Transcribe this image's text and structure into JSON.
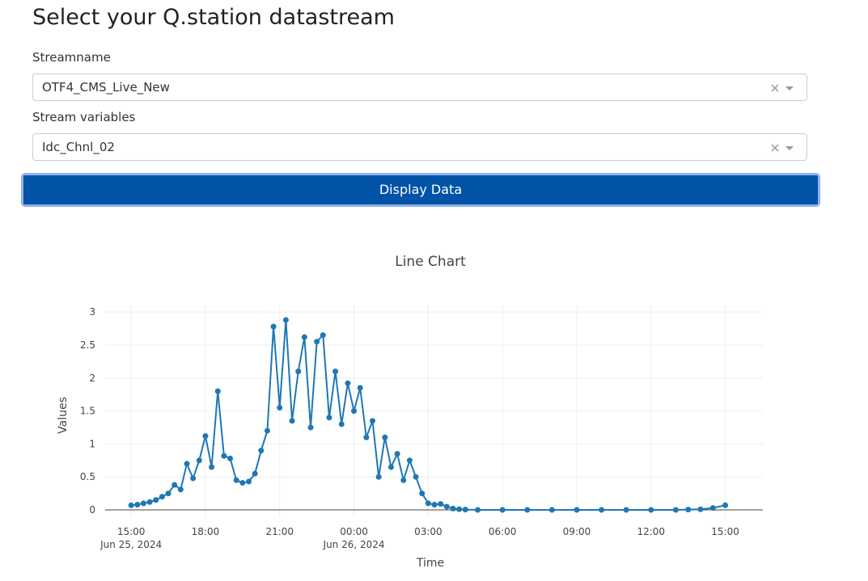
{
  "form": {
    "title": "Select your Q.station datastream",
    "fields": [
      {
        "label": "Streamname",
        "value": "OTF4_CMS_Live_New"
      },
      {
        "label": "Stream variables",
        "value": "Idc_Chnl_02"
      }
    ],
    "button": "Display Data"
  },
  "chart_data": {
    "type": "line",
    "title": "Line Chart",
    "xlabel": "Time",
    "ylabel": "Values",
    "xlim": [
      "2024-06-25 13:57",
      "2024-06-26 16:31"
    ],
    "xticks": [
      {
        "value": "2024-06-25 15:00",
        "label": [
          "15:00",
          "Jun 25, 2024"
        ]
      },
      {
        "value": "2024-06-25 18:00",
        "label": [
          "18:00"
        ]
      },
      {
        "value": "2024-06-25 21:00",
        "label": [
          "21:00"
        ]
      },
      {
        "value": "2024-06-26 00:00",
        "label": [
          "00:00",
          "Jun 26, 2024"
        ]
      },
      {
        "value": "2024-06-26 03:00",
        "label": [
          "03:00"
        ]
      },
      {
        "value": "2024-06-26 06:00",
        "label": [
          "06:00"
        ]
      },
      {
        "value": "2024-06-26 09:00",
        "label": [
          "09:00"
        ]
      },
      {
        "value": "2024-06-26 12:00",
        "label": [
          "12:00"
        ]
      },
      {
        "value": "2024-06-26 15:00",
        "label": [
          "15:00"
        ]
      }
    ],
    "ylim": [
      -0.11,
      3.1
    ],
    "yticks": [
      0,
      0.5,
      1,
      1.5,
      2,
      2.5,
      3
    ],
    "grid": true,
    "series": [
      {
        "color": "#1f77b4",
        "x": [
          "2024-06-25 15:00",
          "2024-06-25 15:15",
          "2024-06-25 15:30",
          "2024-06-25 15:45",
          "2024-06-25 16:00",
          "2024-06-25 16:15",
          "2024-06-25 16:30",
          "2024-06-25 16:45",
          "2024-06-25 17:00",
          "2024-06-25 17:15",
          "2024-06-25 17:30",
          "2024-06-25 17:45",
          "2024-06-25 18:00",
          "2024-06-25 18:15",
          "2024-06-25 18:30",
          "2024-06-25 18:45",
          "2024-06-25 19:00",
          "2024-06-25 19:15",
          "2024-06-25 19:30",
          "2024-06-25 19:45",
          "2024-06-25 20:00",
          "2024-06-25 20:15",
          "2024-06-25 20:30",
          "2024-06-25 20:45",
          "2024-06-25 21:00",
          "2024-06-25 21:15",
          "2024-06-25 21:30",
          "2024-06-25 21:45",
          "2024-06-25 22:00",
          "2024-06-25 22:15",
          "2024-06-25 22:30",
          "2024-06-25 22:45",
          "2024-06-25 23:00",
          "2024-06-25 23:15",
          "2024-06-25 23:30",
          "2024-06-25 23:45",
          "2024-06-26 00:00",
          "2024-06-26 00:15",
          "2024-06-26 00:30",
          "2024-06-26 00:45",
          "2024-06-26 01:00",
          "2024-06-26 01:15",
          "2024-06-26 01:30",
          "2024-06-26 01:45",
          "2024-06-26 02:00",
          "2024-06-26 02:15",
          "2024-06-26 02:30",
          "2024-06-26 02:45",
          "2024-06-26 03:00",
          "2024-06-26 03:15",
          "2024-06-26 03:30",
          "2024-06-26 03:45",
          "2024-06-26 04:00",
          "2024-06-26 04:15",
          "2024-06-26 04:30",
          "2024-06-26 05:00",
          "2024-06-26 06:00",
          "2024-06-26 07:00",
          "2024-06-26 08:00",
          "2024-06-26 09:00",
          "2024-06-26 10:00",
          "2024-06-26 11:00",
          "2024-06-26 12:00",
          "2024-06-26 13:00",
          "2024-06-26 13:30",
          "2024-06-26 14:00",
          "2024-06-26 14:30",
          "2024-06-26 15:00"
        ],
        "values": [
          0.07,
          0.08,
          0.1,
          0.12,
          0.15,
          0.2,
          0.25,
          0.38,
          0.31,
          0.7,
          0.48,
          0.75,
          1.12,
          0.65,
          1.8,
          0.82,
          0.78,
          0.45,
          0.41,
          0.43,
          0.55,
          0.9,
          1.2,
          2.78,
          1.55,
          2.88,
          1.35,
          2.1,
          2.62,
          1.25,
          2.55,
          2.65,
          1.4,
          2.1,
          1.3,
          1.92,
          1.5,
          1.85,
          1.1,
          1.35,
          0.5,
          1.1,
          0.65,
          0.85,
          0.45,
          0.75,
          0.5,
          0.25,
          0.1,
          0.08,
          0.09,
          0.05,
          0.02,
          0.01,
          0.005,
          0,
          0,
          0,
          0,
          0,
          0,
          0,
          0,
          0,
          0.005,
          0.01,
          0.03,
          0.07
        ]
      }
    ]
  }
}
